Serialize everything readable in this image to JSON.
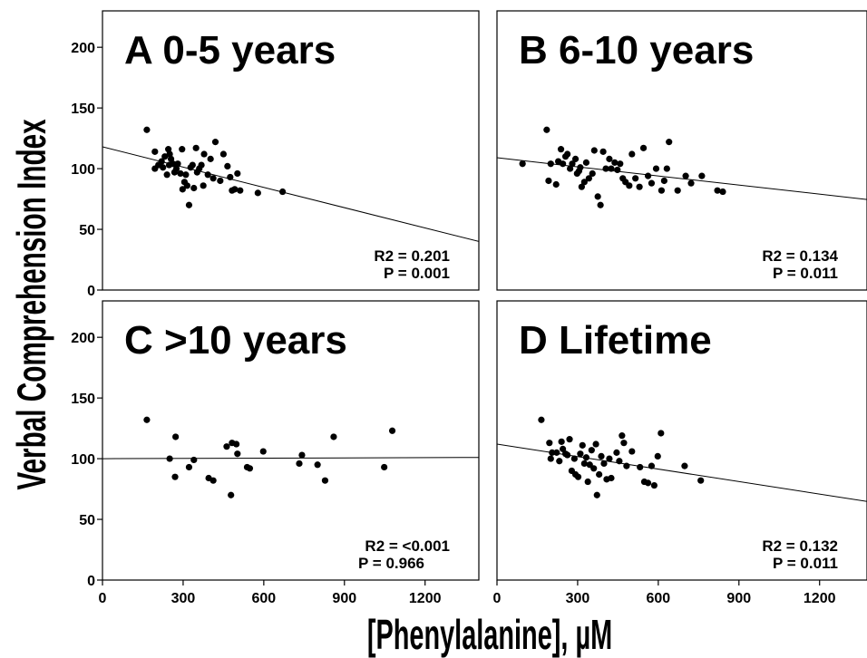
{
  "chart_data": {
    "type": "scatter",
    "xlabel": "[Phenylalanine], µM",
    "ylabel": "Verbal Comprehension Index",
    "xlim": [
      0,
      1400
    ],
    "ylim": [
      0,
      230
    ],
    "xticks": [
      "0",
      "300",
      "600",
      "900",
      "1200"
    ],
    "yticks": [
      "0",
      "50",
      "100",
      "150",
      "200"
    ],
    "colors": {
      "points": "#000000",
      "line": "#000000",
      "frame": "#000000"
    },
    "panels": [
      {
        "title": "A 0-5 years",
        "r2": "R2 = 0.201",
        "p": "P = 0.001",
        "fit": {
          "x": [
            0,
            1400
          ],
          "y": [
            118,
            40
          ]
        },
        "points": [
          [
            165,
            132
          ],
          [
            195,
            114
          ],
          [
            195,
            100
          ],
          [
            208,
            103
          ],
          [
            220,
            106
          ],
          [
            225,
            101
          ],
          [
            232,
            110
          ],
          [
            240,
            95
          ],
          [
            245,
            116
          ],
          [
            248,
            103
          ],
          [
            250,
            112
          ],
          [
            255,
            108
          ],
          [
            262,
            104
          ],
          [
            268,
            97
          ],
          [
            275,
            100
          ],
          [
            280,
            104
          ],
          [
            290,
            96
          ],
          [
            296,
            116
          ],
          [
            298,
            83
          ],
          [
            305,
            89
          ],
          [
            310,
            95
          ],
          [
            315,
            86
          ],
          [
            322,
            70
          ],
          [
            328,
            101
          ],
          [
            335,
            103
          ],
          [
            340,
            84
          ],
          [
            348,
            117
          ],
          [
            352,
            97
          ],
          [
            360,
            100
          ],
          [
            368,
            103
          ],
          [
            375,
            86
          ],
          [
            378,
            112
          ],
          [
            392,
            95
          ],
          [
            402,
            108
          ],
          [
            412,
            92
          ],
          [
            420,
            122
          ],
          [
            438,
            90
          ],
          [
            450,
            112
          ],
          [
            465,
            102
          ],
          [
            475,
            93
          ],
          [
            482,
            82
          ],
          [
            492,
            83
          ],
          [
            502,
            96
          ],
          [
            512,
            82
          ],
          [
            578,
            80
          ],
          [
            670,
            81
          ]
        ]
      },
      {
        "title": "B 6-10 years",
        "r2": "R2 = 0.134",
        "p": "P = 0.011",
        "fit": {
          "x": [
            0,
            1400
          ],
          "y": [
            109,
            74
          ]
        },
        "points": [
          [
            95,
            104
          ],
          [
            185,
            132
          ],
          [
            192,
            90
          ],
          [
            200,
            104
          ],
          [
            220,
            87
          ],
          [
            228,
            106
          ],
          [
            238,
            116
          ],
          [
            245,
            104
          ],
          [
            255,
            110
          ],
          [
            262,
            112
          ],
          [
            272,
            100
          ],
          [
            280,
            104
          ],
          [
            292,
            108
          ],
          [
            298,
            96
          ],
          [
            305,
            98
          ],
          [
            310,
            101
          ],
          [
            315,
            85
          ],
          [
            325,
            89
          ],
          [
            332,
            105
          ],
          [
            342,
            92
          ],
          [
            355,
            96
          ],
          [
            362,
            115
          ],
          [
            375,
            77
          ],
          [
            385,
            70
          ],
          [
            395,
            114
          ],
          [
            405,
            100
          ],
          [
            418,
            108
          ],
          [
            425,
            100
          ],
          [
            438,
            105
          ],
          [
            448,
            99
          ],
          [
            458,
            104
          ],
          [
            468,
            92
          ],
          [
            478,
            89
          ],
          [
            492,
            86
          ],
          [
            502,
            112
          ],
          [
            515,
            92
          ],
          [
            530,
            85
          ],
          [
            545,
            117
          ],
          [
            562,
            94
          ],
          [
            575,
            88
          ],
          [
            592,
            100
          ],
          [
            612,
            82
          ],
          [
            622,
            90
          ],
          [
            632,
            100
          ],
          [
            640,
            122
          ],
          [
            672,
            82
          ],
          [
            702,
            94
          ],
          [
            722,
            88
          ],
          [
            762,
            94
          ],
          [
            820,
            82
          ],
          [
            840,
            81
          ]
        ]
      },
      {
        "title": "C >10 years",
        "r2": "R2 = <0.001",
        "p": "P = 0.966",
        "fit": {
          "x": [
            0,
            1400
          ],
          "y": [
            100,
            101
          ]
        },
        "points": [
          [
            165,
            132
          ],
          [
            250,
            100
          ],
          [
            270,
            85
          ],
          [
            272,
            118
          ],
          [
            322,
            93
          ],
          [
            340,
            99
          ],
          [
            395,
            84
          ],
          [
            412,
            82
          ],
          [
            462,
            110
          ],
          [
            478,
            70
          ],
          [
            482,
            113
          ],
          [
            498,
            112
          ],
          [
            502,
            104
          ],
          [
            538,
            93
          ],
          [
            548,
            92
          ],
          [
            598,
            106
          ],
          [
            732,
            96
          ],
          [
            742,
            103
          ],
          [
            800,
            95
          ],
          [
            828,
            82
          ],
          [
            860,
            118
          ],
          [
            1048,
            93
          ],
          [
            1078,
            123
          ]
        ]
      },
      {
        "title": "D Lifetime",
        "r2": "R2 = 0.132",
        "p": "P = 0.011",
        "fit": {
          "x": [
            0,
            1400
          ],
          "y": [
            112,
            64
          ]
        },
        "points": [
          [
            165,
            132
          ],
          [
            195,
            113
          ],
          [
            200,
            100
          ],
          [
            205,
            105
          ],
          [
            222,
            105
          ],
          [
            232,
            98
          ],
          [
            240,
            114
          ],
          [
            245,
            108
          ],
          [
            255,
            104
          ],
          [
            262,
            103
          ],
          [
            270,
            116
          ],
          [
            278,
            90
          ],
          [
            288,
            100
          ],
          [
            292,
            87
          ],
          [
            302,
            85
          ],
          [
            310,
            104
          ],
          [
            318,
            111
          ],
          [
            325,
            96
          ],
          [
            332,
            101
          ],
          [
            338,
            81
          ],
          [
            345,
            95
          ],
          [
            352,
            107
          ],
          [
            360,
            92
          ],
          [
            368,
            112
          ],
          [
            372,
            70
          ],
          [
            380,
            87
          ],
          [
            388,
            102
          ],
          [
            398,
            96
          ],
          [
            408,
            83
          ],
          [
            418,
            100
          ],
          [
            425,
            84
          ],
          [
            445,
            105
          ],
          [
            455,
            98
          ],
          [
            465,
            119
          ],
          [
            472,
            113
          ],
          [
            482,
            94
          ],
          [
            502,
            106
          ],
          [
            532,
            93
          ],
          [
            548,
            81
          ],
          [
            562,
            80
          ],
          [
            575,
            94
          ],
          [
            585,
            78
          ],
          [
            598,
            102
          ],
          [
            610,
            121
          ],
          [
            698,
            94
          ],
          [
            758,
            82
          ]
        ]
      }
    ]
  }
}
